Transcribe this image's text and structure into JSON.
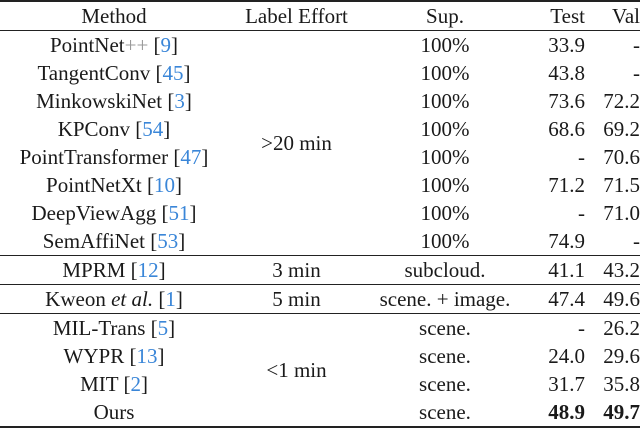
{
  "headers": [
    "Method",
    "Label Effort",
    "Sup.",
    "Test",
    "Val"
  ],
  "groups": [
    {
      "effort": ">20 min",
      "rows": [
        {
          "method": "PointNet",
          "suffix": "++",
          "cite": "9",
          "sup": "100%",
          "test": "33.9",
          "val": "-"
        },
        {
          "method": "TangentConv",
          "cite": "45",
          "sup": "100%",
          "test": "43.8",
          "val": "-"
        },
        {
          "method": "MinkowskiNet",
          "cite": "3",
          "sup": "100%",
          "test": "73.6",
          "val": "72.2"
        },
        {
          "method": "KPConv",
          "cite": "54",
          "sup": "100%",
          "test": "68.6",
          "val": "69.2"
        },
        {
          "method": "PointTransformer",
          "cite": "47",
          "sup": "100%",
          "test": "-",
          "val": "70.6"
        },
        {
          "method": "PointNetXt",
          "cite": "10",
          "sup": "100%",
          "test": "71.2",
          "val": "71.5"
        },
        {
          "method": "DeepViewAgg",
          "cite": "51",
          "sup": "100%",
          "test": "-",
          "val": "71.0"
        },
        {
          "method": "SemAffiNet",
          "cite": "53",
          "sup": "100%",
          "test": "74.9",
          "val": "-"
        }
      ]
    },
    {
      "effort": "3 min",
      "rows": [
        {
          "method": "MPRM",
          "cite": "12",
          "sup": "subcloud.",
          "test": "41.1",
          "val": "43.2"
        }
      ]
    },
    {
      "effort": "5 min",
      "rows": [
        {
          "method": "Kweon",
          "etal": "et al.",
          "cite": "1",
          "sup": "scene. + image.",
          "test": "47.4",
          "val": "49.6"
        }
      ]
    },
    {
      "effort": "<1 min",
      "rows": [
        {
          "method": "MIL-Trans",
          "cite": "5",
          "sup": "scene.",
          "test": "-",
          "val": "26.2"
        },
        {
          "method": "WYPR",
          "cite": "13",
          "sup": "scene.",
          "test": "24.0",
          "val": "29.6"
        },
        {
          "method": "MIT",
          "cite": "2",
          "sup": "scene.",
          "test": "31.7",
          "val": "35.8"
        },
        {
          "method": "Ours",
          "sup": "scene.",
          "test": "48.9",
          "val": "49.7",
          "bold": true
        }
      ]
    }
  ],
  "colors": {
    "citation": "#3a86d8",
    "text": "#1a1a1a"
  }
}
